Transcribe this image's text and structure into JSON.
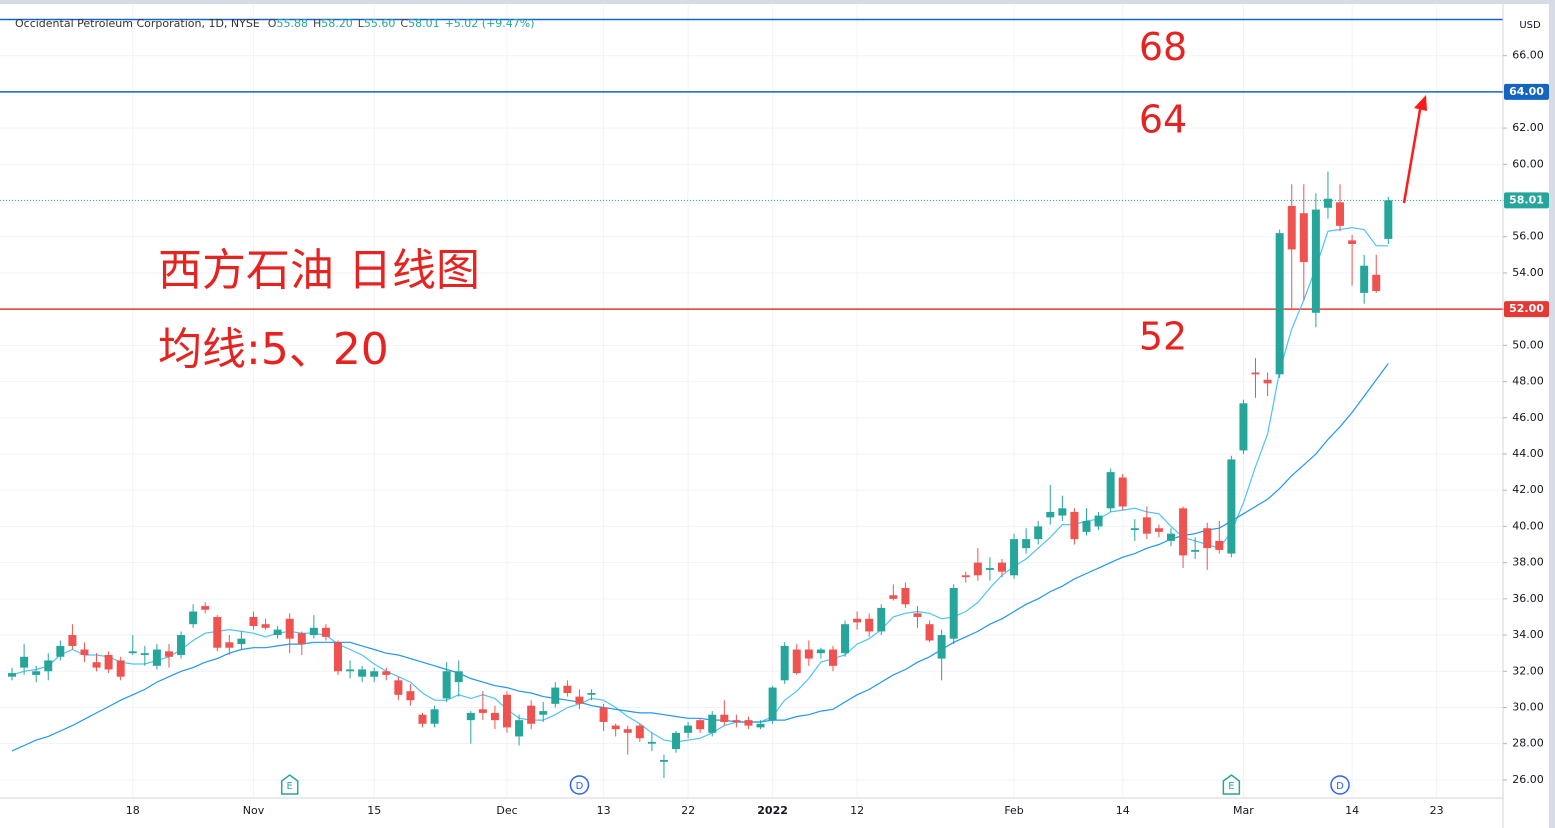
{
  "chart_data": {
    "type": "candlestick",
    "header": {
      "title": "Occidental Petroleum Corporation, 1D, NYSE",
      "fields": [
        {
          "key": "O",
          "text": "55.88"
        },
        {
          "key": "H",
          "text": "58.20"
        },
        {
          "key": "L",
          "text": "55.60"
        },
        {
          "key": "C",
          "text": "58.01"
        }
      ],
      "change": "+5.02 (+9.47%)"
    },
    "currency": "USD",
    "annotations": [
      "西方石油 日线图",
      "均线:5、20"
    ],
    "up_color": "#26a69a",
    "down_color": "#ef5350",
    "ylim": [
      25.0,
      68.8
    ],
    "yticks": [
      {
        "value": 26,
        "label": "26.00"
      },
      {
        "value": 28,
        "label": "28.00"
      },
      {
        "value": 30,
        "label": "30.00"
      },
      {
        "value": 32,
        "label": "32.00"
      },
      {
        "value": 34,
        "label": "34.00"
      },
      {
        "value": 36,
        "label": "36.00"
      },
      {
        "value": 38,
        "label": "38.00"
      },
      {
        "value": 40,
        "label": "40.00"
      },
      {
        "value": 42,
        "label": "42.00"
      },
      {
        "value": 44,
        "label": "44.00"
      },
      {
        "value": 46,
        "label": "46.00"
      },
      {
        "value": 48,
        "label": "48.00"
      },
      {
        "value": 50,
        "label": "50.00"
      },
      {
        "value": 52,
        "label": "52.00"
      },
      {
        "value": 54,
        "label": "54.00"
      },
      {
        "value": 56,
        "label": "56.00"
      },
      {
        "value": 58,
        "label": "58.00"
      },
      {
        "value": 60,
        "label": "60.00"
      },
      {
        "value": 62,
        "label": "62.00"
      },
      {
        "value": 64,
        "label": "64.00"
      },
      {
        "value": 66,
        "label": "66.00"
      }
    ],
    "grid": true,
    "hlines": [
      {
        "value": 68,
        "text": "68",
        "color": "#1565c0"
      },
      {
        "value": 64,
        "text": "64",
        "color": "#1565c0",
        "label": "64.00"
      },
      {
        "value": 52,
        "text": "52",
        "color": "#e53935",
        "label": "52.00"
      }
    ],
    "last_price": 58.01,
    "categories": [
      null,
      null,
      null,
      null,
      null,
      null,
      null,
      null,
      null,
      null,
      "18",
      null,
      null,
      null,
      null,
      null,
      null,
      null,
      null,
      null,
      "Nov",
      null,
      null,
      null,
      null,
      null,
      null,
      null,
      null,
      null,
      "15",
      null,
      null,
      null,
      null,
      null,
      null,
      null,
      null,
      null,
      null,
      "Dec",
      null,
      null,
      null,
      null,
      null,
      null,
      null,
      "13",
      null,
      null,
      null,
      null,
      null,
      null,
      "22",
      null,
      null,
      null,
      null,
      null,
      null,
      "2022",
      null,
      null,
      null,
      null,
      null,
      null,
      "12",
      null,
      null,
      null,
      null,
      null,
      null,
      null,
      null,
      null,
      null,
      null,
      null,
      "Feb",
      null,
      null,
      null,
      null,
      null,
      null,
      null,
      null,
      "14",
      null,
      null,
      null,
      null,
      null,
      null,
      null,
      null,
      null,
      "Mar",
      null,
      null,
      null,
      null,
      null,
      null,
      null,
      null,
      "14",
      null,
      null,
      null,
      null,
      null,
      null,
      "23",
      null,
      null,
      null,
      null,
      null
    ],
    "events": [
      null,
      null,
      null,
      null,
      null,
      null,
      null,
      null,
      null,
      null,
      null,
      null,
      null,
      null,
      null,
      null,
      null,
      null,
      null,
      null,
      null,
      null,
      null,
      "E",
      null,
      null,
      null,
      null,
      null,
      null,
      null,
      null,
      null,
      null,
      null,
      null,
      null,
      null,
      null,
      null,
      null,
      null,
      null,
      null,
      null,
      null,
      null,
      "D",
      null,
      null,
      null,
      null,
      null,
      null,
      null,
      null,
      null,
      null,
      null,
      null,
      null,
      null,
      null,
      null,
      null,
      null,
      null,
      null,
      null,
      null,
      null,
      null,
      null,
      null,
      null,
      null,
      null,
      null,
      null,
      null,
      null,
      null,
      null,
      null,
      null,
      null,
      null,
      null,
      null,
      null,
      null,
      null,
      null,
      null,
      null,
      null,
      null,
      null,
      null,
      null,
      null,
      "E",
      null,
      null,
      null,
      null,
      null,
      null,
      null,
      null,
      "D",
      null,
      null,
      null,
      null,
      null,
      null,
      null,
      null,
      null,
      null,
      null,
      null,
      null,
      null,
      null
    ],
    "open": [
      31.7,
      32.2,
      31.8,
      32.0,
      32.8,
      34.0,
      33.2,
      32.5,
      32.9,
      32.6,
      33.0,
      32.9,
      32.3,
      33.1,
      32.9,
      34.6,
      35.6,
      35.0,
      33.6,
      33.5,
      35.0,
      34.6,
      34.0,
      34.9,
      34.1,
      34.0,
      34.4,
      33.6,
      32.0,
      31.7,
      31.7,
      32.0,
      31.5,
      30.9,
      29.6,
      29.1,
      30.5,
      31.4,
      29.3,
      29.9,
      29.7,
      30.7,
      28.4,
      30.1,
      29.6,
      30.2,
      31.2,
      30.6,
      30.7,
      30.0,
      29.0,
      28.8,
      29.0,
      28.0,
      27.0,
      27.7,
      28.6,
      29.3,
      28.6,
      29.6,
      29.3,
      29.3,
      28.9,
      29.3,
      31.5,
      33.2,
      33.2,
      33.0,
      33.2,
      33.0,
      34.9,
      34.9,
      34.2,
      36.2,
      36.6,
      35.2,
      34.6,
      32.7,
      33.8,
      37.3,
      38.0,
      37.6,
      38.0,
      37.3,
      38.8,
      39.3,
      40.5,
      40.6,
      40.8,
      39.7,
      40.0,
      41.0,
      42.7,
      39.8,
      40.5,
      39.9,
      39.2,
      41.0,
      38.6,
      39.9,
      39.2,
      38.5,
      44.2,
      48.5,
      48.1,
      48.4,
      57.7,
      57.3,
      51.8,
      57.6,
      57.9,
      55.8,
      52.9,
      53.9,
      55.88,
      null,
      null,
      null,
      null,
      null,
      null,
      null,
      null,
      null
    ],
    "high": [
      32.2,
      33.5,
      32.3,
      33.0,
      33.7,
      34.6,
      33.6,
      33.0,
      33.1,
      32.8,
      34.0,
      33.4,
      33.5,
      33.5,
      34.2,
      35.7,
      35.8,
      35.1,
      34.0,
      34.2,
      35.3,
      34.9,
      34.5,
      35.2,
      34.2,
      35.1,
      34.6,
      33.7,
      32.6,
      32.3,
      32.2,
      32.2,
      31.7,
      31.3,
      29.7,
      30.1,
      32.5,
      32.6,
      29.8,
      30.9,
      30.1,
      30.9,
      29.6,
      30.4,
      30.3,
      31.4,
      31.5,
      31.0,
      31.0,
      30.2,
      29.1,
      29.0,
      29.1,
      28.6,
      27.4,
      28.7,
      29.2,
      29.4,
      29.8,
      30.4,
      29.6,
      29.5,
      29.3,
      31.2,
      33.6,
      33.5,
      33.7,
      33.3,
      33.4,
      34.8,
      35.3,
      35.2,
      35.7,
      36.8,
      36.9,
      35.6,
      34.8,
      34.3,
      36.8,
      37.5,
      38.8,
      38.3,
      38.2,
      39.6,
      39.9,
      40.3,
      42.3,
      41.7,
      41.0,
      41.0,
      40.8,
      43.2,
      42.9,
      40.4,
      41.1,
      40.1,
      39.9,
      41.1,
      39.4,
      40.2,
      40.3,
      43.9,
      47.0,
      49.3,
      48.5,
      56.4,
      58.9,
      58.9,
      58.4,
      59.6,
      58.9,
      56.1,
      55.0,
      55.0,
      58.2,
      null,
      null,
      null,
      null,
      null,
      null,
      null,
      null,
      null
    ],
    "low": [
      31.5,
      31.8,
      31.4,
      31.5,
      32.6,
      33.2,
      32.5,
      32.0,
      31.9,
      31.5,
      32.9,
      32.3,
      32.1,
      32.2,
      32.7,
      34.4,
      35.2,
      33.1,
      32.9,
      33.2,
      34.3,
      34.3,
      33.8,
      33.0,
      32.9,
      33.8,
      33.7,
      31.8,
      31.6,
      31.4,
      31.4,
      31.5,
      30.4,
      30.1,
      28.9,
      28.9,
      30.3,
      30.6,
      28.0,
      29.3,
      28.8,
      28.6,
      27.9,
      28.8,
      29.2,
      30.0,
      30.6,
      29.9,
      30.4,
      28.7,
      28.4,
      27.4,
      28.1,
      27.6,
      26.1,
      27.5,
      28.3,
      28.6,
      28.4,
      29.0,
      28.9,
      28.8,
      28.8,
      29.1,
      31.3,
      31.8,
      32.3,
      32.7,
      32.0,
      32.8,
      34.3,
      33.9,
      34.0,
      35.9,
      35.5,
      34.4,
      33.6,
      31.5,
      33.5,
      36.9,
      37.0,
      37.0,
      37.2,
      37.1,
      38.5,
      39.0,
      40.1,
      40.3,
      39.0,
      39.5,
      39.8,
      40.8,
      40.9,
      39.2,
      39.3,
      39.4,
      38.9,
      37.7,
      38.2,
      37.6,
      38.5,
      38.3,
      44.0,
      47.1,
      47.2,
      48.2,
      52.0,
      52.5,
      51.0,
      57.0,
      56.3,
      53.3,
      52.3,
      52.9,
      55.6,
      null,
      null,
      null,
      null,
      null,
      null,
      null,
      null,
      null
    ],
    "close": [
      31.9,
      32.8,
      32.0,
      32.6,
      33.4,
      33.4,
      32.9,
      32.2,
      32.1,
      31.7,
      33.1,
      33.0,
      33.2,
      32.8,
      34.0,
      35.3,
      35.4,
      33.3,
      33.3,
      33.8,
      34.5,
      34.4,
      34.3,
      33.8,
      33.5,
      34.4,
      33.9,
      32.0,
      32.1,
      32.1,
      32.0,
      31.8,
      30.7,
      30.4,
      29.1,
      29.9,
      32.0,
      32.0,
      29.7,
      29.7,
      29.3,
      28.9,
      29.3,
      29.1,
      29.8,
      31.1,
      30.8,
      30.2,
      30.8,
      29.2,
      28.8,
      28.6,
      28.3,
      28.1,
      27.1,
      28.6,
      29.0,
      28.8,
      29.6,
      29.2,
      29.2,
      29.0,
      29.1,
      31.1,
      33.4,
      31.9,
      32.7,
      33.2,
      32.3,
      34.6,
      34.7,
      34.2,
      35.5,
      36.0,
      35.7,
      35.0,
      33.7,
      34.0,
      36.6,
      37.2,
      37.3,
      37.7,
      37.5,
      39.3,
      39.3,
      40.0,
      40.8,
      41.0,
      39.3,
      40.3,
      40.6,
      43.0,
      41.1,
      39.9,
      39.6,
      39.7,
      39.6,
      38.4,
      38.7,
      38.8,
      38.7,
      43.7,
      46.8,
      48.4,
      47.9,
      56.2,
      55.3,
      54.6,
      57.5,
      58.1,
      56.6,
      55.6,
      54.4,
      53.0,
      58.01,
      null,
      null,
      null,
      null,
      null,
      null,
      null,
      null,
      null
    ],
    "lines": [
      {
        "color": "#4fc3f7",
        "values": [
          31.8,
          32.0,
          32.1,
          32.3,
          32.9,
          33.2,
          32.9,
          32.9,
          32.8,
          32.5,
          32.4,
          32.4,
          32.6,
          32.8,
          33.2,
          33.7,
          34.1,
          34.2,
          34.3,
          34.2,
          34.1,
          33.9,
          34.1,
          34.2,
          34.1,
          34.1,
          34.0,
          33.5,
          33.2,
          32.9,
          32.4,
          32.0,
          31.7,
          31.4,
          30.8,
          30.4,
          30.4,
          30.7,
          30.5,
          30.7,
          30.5,
          29.9,
          29.4,
          29.3,
          29.3,
          29.6,
          30.0,
          30.2,
          30.5,
          30.4,
          30.0,
          29.5,
          29.1,
          28.6,
          28.2,
          28.1,
          28.2,
          28.3,
          28.6,
          29.0,
          29.2,
          29.2,
          29.2,
          29.5,
          30.4,
          30.9,
          31.6,
          32.5,
          32.7,
          32.9,
          33.5,
          33.8,
          34.3,
          35.0,
          35.2,
          35.3,
          35.2,
          34.9,
          35.0,
          35.3,
          35.8,
          36.6,
          37.3,
          37.8,
          38.2,
          38.8,
          39.4,
          40.1,
          40.1,
          40.3,
          40.4,
          40.8,
          40.9,
          41.0,
          40.8,
          40.7,
          40.0,
          39.4,
          39.2,
          39.0,
          38.8,
          39.7,
          41.3,
          43.3,
          45.1,
          48.6,
          50.9,
          52.5,
          54.3,
          56.3,
          56.4,
          56.5,
          56.4,
          55.5,
          55.5,
          null,
          null,
          null,
          null,
          null,
          null,
          null,
          null,
          null
        ]
      },
      {
        "color": "#2196f3",
        "values": [
          27.6,
          27.9,
          28.2,
          28.4,
          28.7,
          29.0,
          29.35,
          29.7,
          30.05,
          30.4,
          30.7,
          31.0,
          31.4,
          31.7,
          32.0,
          32.2,
          32.5,
          32.7,
          33.0,
          33.2,
          33.3,
          33.3,
          33.4,
          33.5,
          33.5,
          33.6,
          33.6,
          33.6,
          33.6,
          33.4,
          33.2,
          33.0,
          32.9,
          32.7,
          32.5,
          32.3,
          32.1,
          31.9,
          31.6,
          31.4,
          31.2,
          31.1,
          30.9,
          30.8,
          30.6,
          30.5,
          30.4,
          30.3,
          30.1,
          30.0,
          29.9,
          29.8,
          29.7,
          29.7,
          29.6,
          29.5,
          29.4,
          29.4,
          29.3,
          29.3,
          29.2,
          29.2,
          29.2,
          29.3,
          29.3,
          29.5,
          29.6,
          29.8,
          29.9,
          30.3,
          30.7,
          31.0,
          31.4,
          31.8,
          32.1,
          32.5,
          32.8,
          33.2,
          33.6,
          33.9,
          34.2,
          34.6,
          34.9,
          35.3,
          35.7,
          36.0,
          36.4,
          36.7,
          37.1,
          37.4,
          37.7,
          38.0,
          38.3,
          38.5,
          38.8,
          39.0,
          39.3,
          39.5,
          39.6,
          39.8,
          39.9,
          40.3,
          40.7,
          41.1,
          41.5,
          42.1,
          42.8,
          43.4,
          44.0,
          44.8,
          45.5,
          46.3,
          47.2,
          48.1,
          49.0,
          null,
          null,
          null,
          null,
          null,
          null,
          null,
          null,
          null
        ]
      }
    ]
  }
}
